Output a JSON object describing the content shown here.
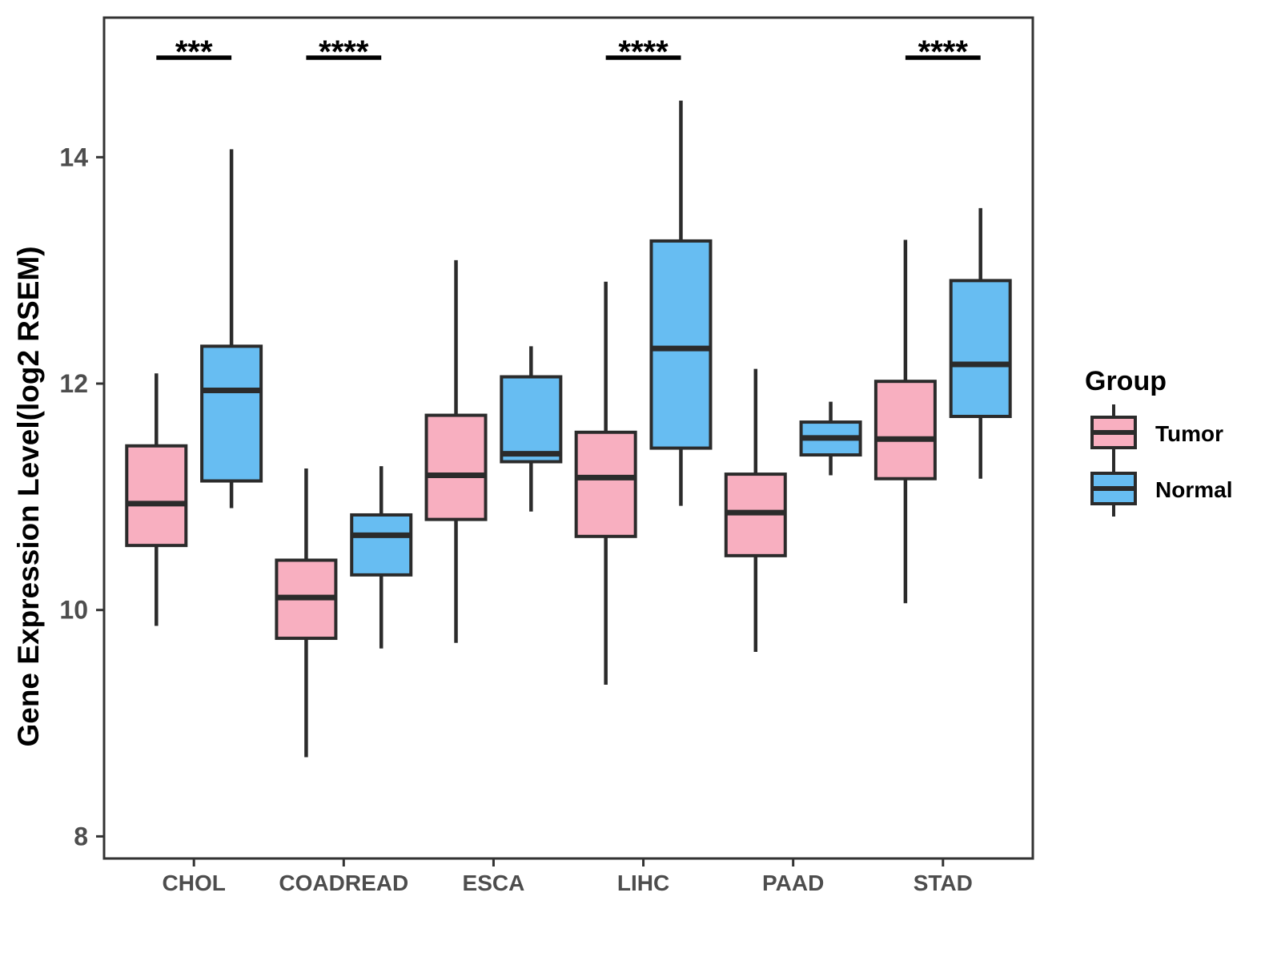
{
  "chart_data": {
    "type": "boxplot",
    "title": "",
    "ylabel": "Gene Expression Level(log2 RSEM)",
    "xlabel": "",
    "yticks": [
      8,
      10,
      12,
      14
    ],
    "ylim": [
      7.8,
      15.23
    ],
    "grid": false,
    "legend_position": "right",
    "categories": [
      "CHOL",
      "COADREAD",
      "ESCA",
      "LIHC",
      "PAAD",
      "STAD"
    ],
    "series": [
      {
        "name": "Tumor",
        "color": "#F8AFC0",
        "boxes": [
          {
            "low": 9.86,
            "q1": 10.57,
            "median": 10.94,
            "q3": 11.45,
            "high": 12.09
          },
          {
            "low": 8.7,
            "q1": 9.75,
            "median": 10.11,
            "q3": 10.44,
            "high": 11.25
          },
          {
            "low": 9.71,
            "q1": 10.8,
            "median": 11.19,
            "q3": 11.72,
            "high": 13.09
          },
          {
            "low": 9.34,
            "q1": 10.65,
            "median": 11.17,
            "q3": 11.57,
            "high": 12.9
          },
          {
            "low": 9.63,
            "q1": 10.48,
            "median": 10.86,
            "q3": 11.2,
            "high": 12.13
          },
          {
            "low": 10.06,
            "q1": 11.16,
            "median": 11.51,
            "q3": 12.02,
            "high": 13.27
          }
        ]
      },
      {
        "name": "Normal",
        "color": "#67BDF2",
        "boxes": [
          {
            "low": 10.9,
            "q1": 11.14,
            "median": 11.94,
            "q3": 12.33,
            "high": 14.07
          },
          {
            "low": 9.66,
            "q1": 10.31,
            "median": 10.66,
            "q3": 10.84,
            "high": 11.27
          },
          {
            "low": 10.87,
            "q1": 11.31,
            "median": 11.38,
            "q3": 12.06,
            "high": 12.33
          },
          {
            "low": 10.92,
            "q1": 11.43,
            "median": 12.31,
            "q3": 13.26,
            "high": 14.5
          },
          {
            "low": 11.19,
            "q1": 11.37,
            "median": 11.52,
            "q3": 11.66,
            "high": 11.84
          },
          {
            "low": 11.16,
            "q1": 11.71,
            "median": 12.17,
            "q3": 12.91,
            "high": 13.55
          }
        ]
      }
    ],
    "significance": [
      {
        "category": "CHOL",
        "label": "***"
      },
      {
        "category": "COADREAD",
        "label": "****"
      },
      {
        "category": "LIHC",
        "label": "****"
      },
      {
        "category": "STAD",
        "label": "****"
      }
    ],
    "legend": {
      "title": "Group",
      "entries": [
        {
          "label": "Tumor",
          "color": "#F8AFC0"
        },
        {
          "label": "Normal",
          "color": "#67BDF2"
        }
      ]
    },
    "colors": {
      "box_stroke": "#2B2B2B",
      "axis_line": "#333333",
      "tick_text": "#4D4D4D",
      "title_text": "#000000",
      "background": "#FFFFFF"
    }
  }
}
